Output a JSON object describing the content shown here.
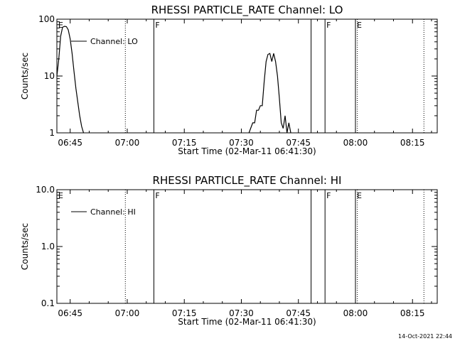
{
  "footer": {
    "timestamp": "14-Oct-2021 22:44"
  },
  "chart_data": [
    {
      "type": "line",
      "title": "RHESSI PARTICLE_RATE Channel: LO",
      "xlabel": "Start Time (02-Mar-11 06:41:30)",
      "ylabel": "Counts/sec",
      "yscale": "log",
      "ylim": [
        1,
        100
      ],
      "xlim": [
        "06:41:30",
        "08:21:30"
      ],
      "x_ticks": [
        "06:45",
        "07:00",
        "07:15",
        "07:30",
        "07:45",
        "08:00",
        "08:15"
      ],
      "y_ticks": [
        "1",
        "10",
        "100"
      ],
      "legend": {
        "label": "Channel: LO",
        "placement": "top-left"
      },
      "series": [
        {
          "name": "Channel: LO",
          "segments": [
            {
              "x": [
                "06:41:30",
                "06:42:00",
                "06:42:30",
                "06:43:00",
                "06:43:30",
                "06:44:00",
                "06:44:30",
                "06:45:00",
                "06:45:30",
                "06:46:00",
                "06:46:30",
                "06:47:00",
                "06:47:30",
                "06:48:00",
                "06:48:30"
              ],
              "y": [
                10,
                20,
                50,
                72,
                75,
                74,
                65,
                45,
                25,
                12,
                6,
                3.5,
                2,
                1.3,
                1
              ]
            },
            {
              "x": [
                "07:32:00",
                "07:33:00",
                "07:33:30",
                "07:34:00",
                "07:34:30",
                "07:35:00",
                "07:35:30",
                "07:36:00",
                "07:36:30",
                "07:37:00",
                "07:37:30",
                "07:38:00",
                "07:38:30",
                "07:39:00",
                "07:39:30",
                "07:40:00",
                "07:40:30",
                "07:41:00",
                "07:41:30",
                "07:42:00",
                "07:42:30",
                "07:43:00"
              ],
              "y": [
                1,
                1.5,
                1.5,
                2.5,
                2.5,
                3,
                3,
                8,
                18,
                24,
                25,
                18,
                25,
                18,
                10,
                4,
                1.5,
                1.2,
                2,
                1,
                1.5,
                1
              ]
            }
          ]
        }
      ],
      "markers": [
        {
          "time": "06:41:30",
          "label": "E",
          "style": "solid"
        },
        {
          "time": "06:59:30",
          "label": "",
          "style": "dotted"
        },
        {
          "time": "07:07:00",
          "label": "F",
          "style": "solid"
        },
        {
          "time": "07:48:20",
          "label": "",
          "style": "solid"
        },
        {
          "time": "07:52:00",
          "label": "F",
          "style": "solid"
        },
        {
          "time": "08:00:00",
          "label": "E",
          "style": "solid"
        },
        {
          "time": "08:00:30",
          "label": "",
          "style": "dotted"
        },
        {
          "time": "08:18:00",
          "label": "",
          "style": "dotted"
        }
      ]
    },
    {
      "type": "line",
      "title": "RHESSI PARTICLE_RATE Channel: HI",
      "xlabel": "Start Time (02-Mar-11 06:41:30)",
      "ylabel": "Counts/sec",
      "yscale": "log",
      "ylim": [
        0.1,
        10
      ],
      "xlim": [
        "06:41:30",
        "08:21:30"
      ],
      "x_ticks": [
        "06:45",
        "07:00",
        "07:15",
        "07:30",
        "07:45",
        "08:00",
        "08:15"
      ],
      "y_ticks": [
        "0.1",
        "1.0",
        "10.0"
      ],
      "legend": {
        "label": "Channel: HI",
        "placement": "top-left"
      },
      "series": [
        {
          "name": "Channel: HI",
          "segments": []
        }
      ],
      "markers": [
        {
          "time": "06:41:30",
          "label": "E",
          "style": "solid"
        },
        {
          "time": "06:59:30",
          "label": "",
          "style": "dotted"
        },
        {
          "time": "07:07:00",
          "label": "F",
          "style": "solid"
        },
        {
          "time": "07:48:20",
          "label": "",
          "style": "solid"
        },
        {
          "time": "07:52:00",
          "label": "F",
          "style": "solid"
        },
        {
          "time": "08:00:00",
          "label": "E",
          "style": "solid"
        },
        {
          "time": "08:00:30",
          "label": "",
          "style": "dotted"
        },
        {
          "time": "08:18:00",
          "label": "",
          "style": "dotted"
        }
      ]
    }
  ]
}
